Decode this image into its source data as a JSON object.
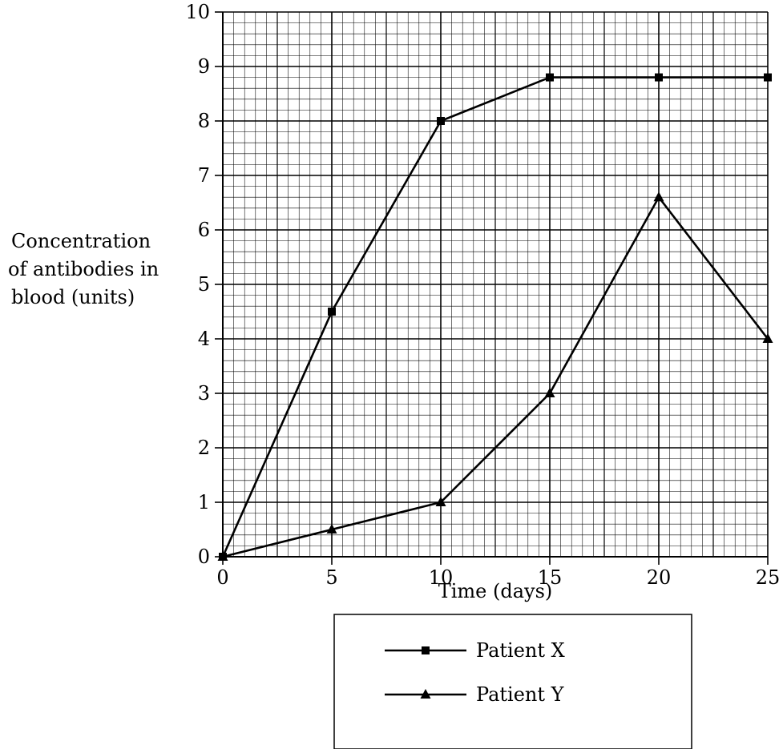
{
  "chart_data": {
    "type": "line",
    "xlabel": "Time (days)",
    "ylabel_lines": [
      "Concentration",
      "of antibodies in",
      "blood (units)"
    ],
    "x": [
      0,
      5,
      10,
      15,
      20,
      25
    ],
    "xlim": [
      0,
      25
    ],
    "ylim": [
      0,
      10
    ],
    "xticks": [
      0,
      5,
      10,
      15,
      20,
      25
    ],
    "yticks": [
      0,
      1,
      2,
      3,
      4,
      5,
      6,
      7,
      8,
      9,
      10
    ],
    "grid": true,
    "legend_position": "bottom",
    "series": [
      {
        "name": "Patient X",
        "marker": "square",
        "values": [
          0,
          4.5,
          8.0,
          8.8,
          8.8,
          8.8
        ]
      },
      {
        "name": "Patient Y",
        "marker": "triangle",
        "values": [
          0,
          0.5,
          1.0,
          3.0,
          6.6,
          4.0
        ]
      }
    ]
  }
}
